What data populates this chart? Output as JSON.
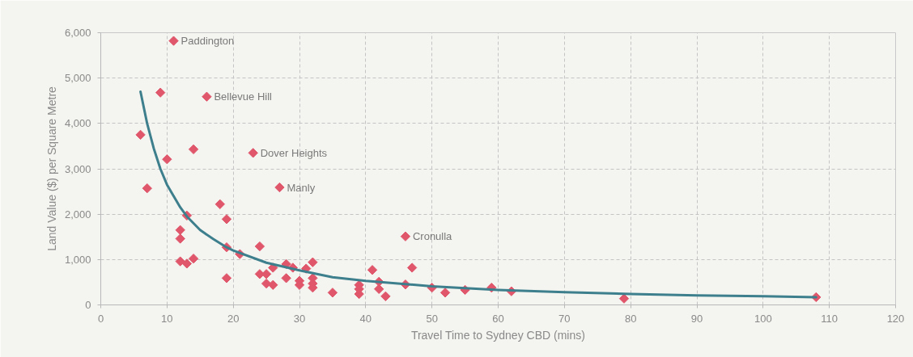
{
  "chart_data": {
    "type": "scatter",
    "xlabel": "Travel Time to Sydney CBD (mins)",
    "ylabel": "Land Value ($) per Square Metre",
    "xlim": [
      0,
      120
    ],
    "xticks": [
      0,
      10,
      20,
      30,
      40,
      50,
      60,
      70,
      80,
      90,
      100,
      110,
      120
    ],
    "ylim": [
      0,
      6000
    ],
    "yticks": [
      0,
      {
        "value": 1000,
        "label": "1,000"
      },
      {
        "value": 2000,
        "label": "2,000"
      },
      {
        "value": 3000,
        "label": "3,000"
      },
      {
        "value": 4000,
        "label": "4,000"
      },
      {
        "value": 5000,
        "label": "5,000"
      },
      {
        "value": 6000,
        "label": "6,000"
      }
    ],
    "grid": true,
    "series": [
      {
        "color": "#e0566b",
        "marker": "diamond",
        "x": [
          6,
          7,
          9,
          10,
          11,
          12,
          12,
          12,
          13,
          13,
          14,
          14,
          16,
          18,
          19,
          19,
          19,
          21,
          23,
          24,
          24,
          25,
          25,
          26,
          26,
          27,
          28,
          28,
          29,
          30,
          30,
          31,
          32,
          32,
          32,
          32,
          35,
          39,
          39,
          39,
          41,
          42,
          42,
          43,
          46,
          46,
          47,
          50,
          52,
          55,
          59,
          62,
          79,
          108
        ],
        "values": [
          3750,
          2570,
          4680,
          3210,
          5820,
          1650,
          1460,
          960,
          1970,
          910,
          3430,
          1020,
          4590,
          2220,
          1890,
          1270,
          590,
          1120,
          3350,
          1290,
          680,
          680,
          470,
          820,
          440,
          2590,
          900,
          590,
          820,
          530,
          440,
          800,
          940,
          590,
          470,
          380,
          270,
          440,
          350,
          240,
          770,
          510,
          350,
          190,
          1510,
          450,
          820,
          380,
          270,
          330,
          380,
          300,
          140,
          170
        ]
      },
      {
        "type": "line",
        "color": "#3d7f8c",
        "line_style": "solid",
        "x": [
          6,
          7,
          8,
          9,
          10,
          11,
          12,
          13,
          15,
          17,
          19,
          20,
          25,
          30,
          35,
          40,
          50,
          60,
          70,
          80,
          90,
          100,
          108
        ],
        "values": [
          4700,
          4000,
          3450,
          3000,
          2650,
          2400,
          2150,
          1950,
          1650,
          1450,
          1270,
          1200,
          930,
          760,
          610,
          530,
          410,
          330,
          280,
          240,
          210,
          190,
          170
        ]
      }
    ],
    "annotations": [
      {
        "text": "Paddington",
        "x": 11,
        "y": 5820
      },
      {
        "text": "Bellevue Hill",
        "x": 16,
        "y": 4590
      },
      {
        "text": "Dover Heights",
        "x": 23,
        "y": 3350
      },
      {
        "text": "Manly",
        "x": 27,
        "y": 2590
      },
      {
        "text": "Cronulla",
        "x": 46,
        "y": 1510
      }
    ]
  }
}
